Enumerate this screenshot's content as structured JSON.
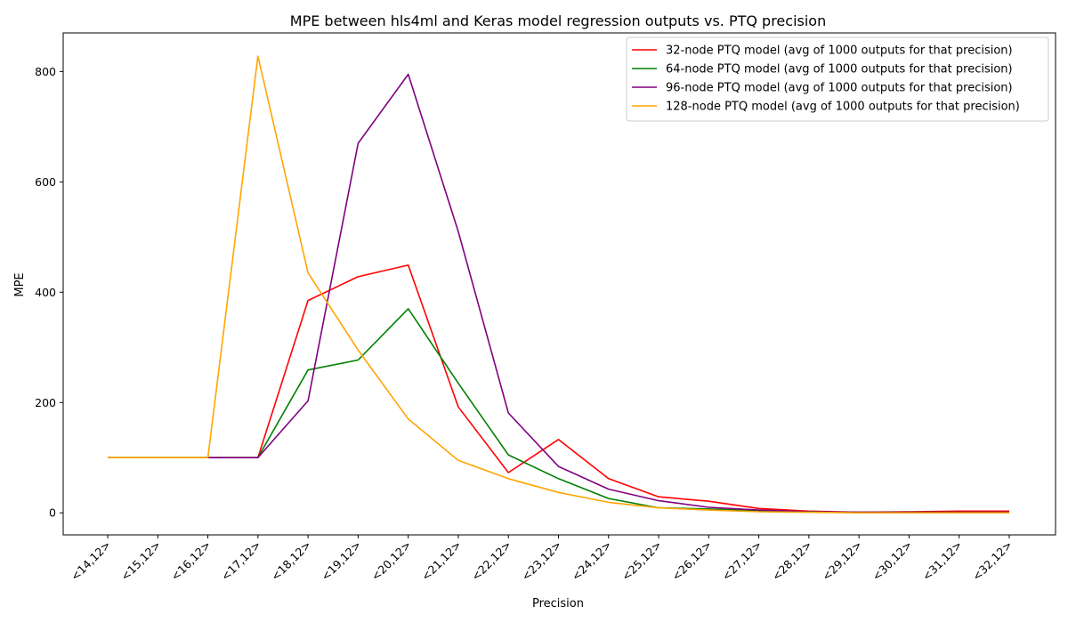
{
  "chart_data": {
    "type": "line",
    "title": "MPE between hls4ml and Keras model regression outputs vs. PTQ precision",
    "xlabel": "Precision",
    "ylabel": "MPE",
    "categories": [
      "<14,12>",
      "<15,12>",
      "<16,12>",
      "<17,12>",
      "<18,12>",
      "<19,12>",
      "<20,12>",
      "<21,12>",
      "<22,12>",
      "<23,12>",
      "<24,12>",
      "<25,12>",
      "<26,12>",
      "<27,12>",
      "<28,12>",
      "<29,12>",
      "<30,12>",
      "<31,12>",
      "<32,12>"
    ],
    "ylim": [
      -40,
      870
    ],
    "yticks": [
      0,
      200,
      400,
      600,
      800
    ],
    "grid": false,
    "legend_position": "upper right",
    "series": [
      {
        "name": "32-node PTQ model (avg of 1000 outputs for that precision)",
        "color": "#ff0000",
        "values": [
          100,
          100,
          100,
          100,
          385,
          428,
          449,
          192,
          73,
          133,
          62,
          29,
          21,
          8,
          3,
          1,
          2,
          3,
          3
        ]
      },
      {
        "name": "64-node PTQ model (avg of 1000 outputs for that precision)",
        "color": "#008000",
        "values": [
          100,
          100,
          100,
          100,
          259,
          277,
          370,
          235,
          105,
          62,
          26,
          9,
          7,
          4,
          2,
          1,
          1,
          1,
          1
        ]
      },
      {
        "name": "96-node PTQ model (avg of 1000 outputs for that precision)",
        "color": "#800080",
        "values": [
          null,
          null,
          100,
          100,
          203,
          670,
          795,
          510,
          181,
          84,
          43,
          22,
          10,
          5,
          2,
          1,
          1,
          1,
          1
        ]
      },
      {
        "name": "128-node PTQ model (avg of 1000 outputs for that precision)",
        "color": "#ffa500",
        "values": [
          100,
          100,
          100,
          828,
          435,
          295,
          170,
          95,
          62,
          37,
          19,
          9,
          5,
          2,
          1,
          0,
          0,
          0,
          0
        ]
      }
    ]
  }
}
